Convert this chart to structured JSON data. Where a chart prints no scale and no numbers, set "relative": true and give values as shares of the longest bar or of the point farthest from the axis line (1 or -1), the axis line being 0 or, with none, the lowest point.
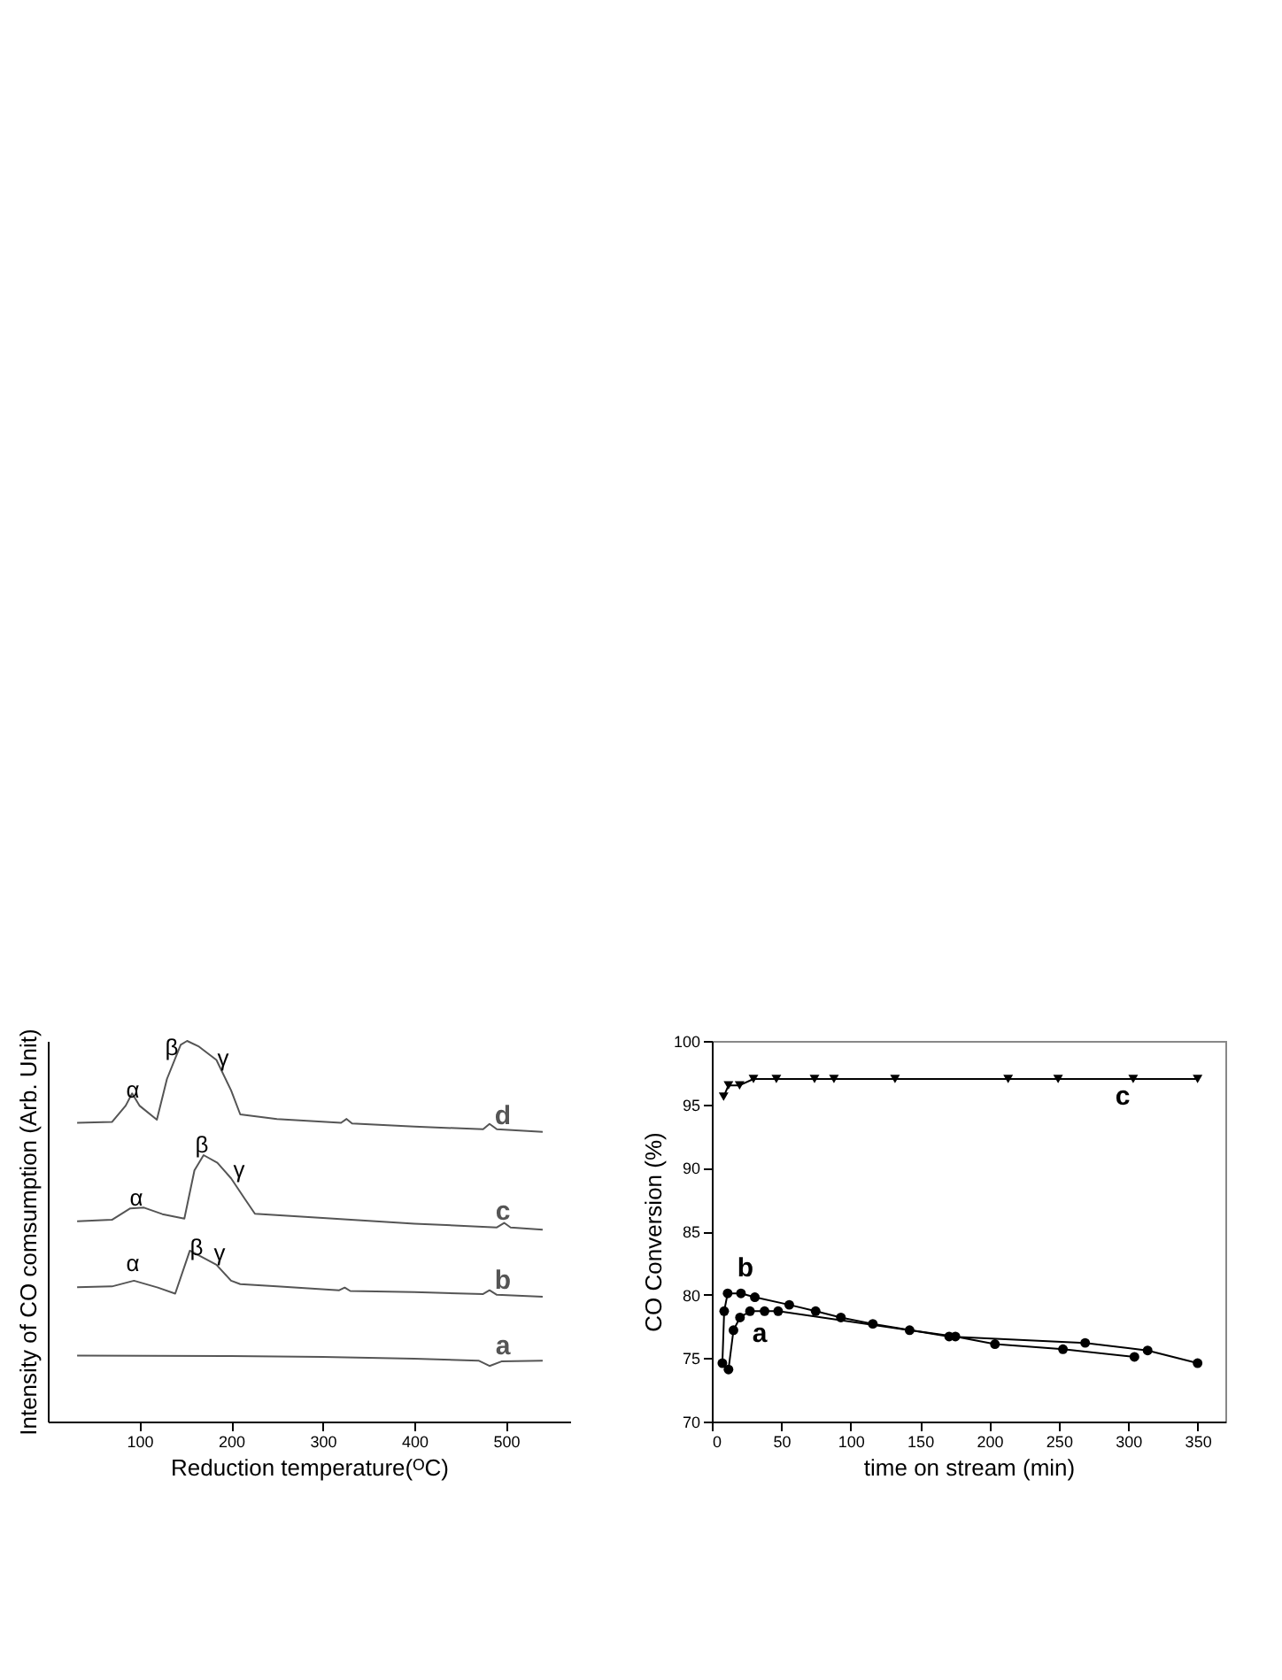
{
  "chart_data": [
    {
      "type": "line",
      "relative": true,
      "xlabel": "Reduction temperature(ᴼC)",
      "ylabel": "Intensity of CO comsumption (Arb. Unit)",
      "xlim": [
        0,
        570
      ],
      "xticks": [
        100,
        200,
        300,
        400,
        500
      ],
      "grid": false,
      "tick_labels": "x",
      "marker": "none",
      "line_style": "solid",
      "series": [
        {
          "name": "a",
          "color": "#555555",
          "x": [
            32,
            200,
            300,
            400,
            470,
            482,
            495,
            540
          ],
          "values": [
            0.173,
            0.172,
            0.17,
            0.165,
            0.16,
            0.146,
            0.158,
            0.16
          ]
        },
        {
          "name": "b",
          "color": "#555555",
          "x": [
            32,
            70,
            94,
            120,
            139,
            155,
            170,
            184,
            200,
            210,
            250,
            318,
            324,
            330,
            400,
            475,
            482,
            490,
            540
          ],
          "values": [
            0.353,
            0.355,
            0.37,
            0.352,
            0.336,
            0.449,
            0.43,
            0.412,
            0.37,
            0.361,
            0.355,
            0.345,
            0.352,
            0.343,
            0.34,
            0.335,
            0.345,
            0.333,
            0.328
          ]
        },
        {
          "name": "c",
          "color": "#555555",
          "x": [
            32,
            70,
            90,
            105,
            125,
            149,
            160,
            170,
            185,
            200,
            215,
            226,
            300,
            400,
            490,
            498,
            505,
            540
          ],
          "values": [
            0.526,
            0.53,
            0.56,
            0.562,
            0.545,
            0.533,
            0.66,
            0.7,
            0.68,
            0.639,
            0.585,
            0.546,
            0.535,
            0.52,
            0.51,
            0.522,
            0.51,
            0.504
          ]
        },
        {
          "name": "d",
          "color": "#555555",
          "x": [
            32,
            70,
            85,
            92,
            100,
            119,
            130,
            145,
            152,
            165,
            184,
            200,
            210,
            250,
            320,
            326,
            332,
            400,
            475,
            482,
            490,
            540
          ],
          "values": [
            0.785,
            0.787,
            0.83,
            0.862,
            0.83,
            0.793,
            0.9,
            0.99,
            1.0,
            0.985,
            0.95,
            0.87,
            0.807,
            0.795,
            0.785,
            0.795,
            0.783,
            0.775,
            0.768,
            0.782,
            0.768,
            0.761
          ]
        }
      ],
      "annotations": [
        "α",
        "β",
        "γ",
        "α",
        "β",
        "γ",
        "α",
        "β",
        "γ"
      ]
    },
    {
      "type": "line",
      "xlabel": "time on stream (min)",
      "ylabel": "CO Conversion (%)",
      "xlim": [
        0,
        370
      ],
      "xticks": [
        0,
        50,
        100,
        150,
        200,
        250,
        300,
        350
      ],
      "ylim": [
        70,
        100
      ],
      "yticks": [
        70,
        75,
        80,
        85,
        90,
        95,
        100
      ],
      "grid": false,
      "line_style": "solid",
      "series": [
        {
          "name": "a",
          "color": "#000000",
          "marker": "circle",
          "x": [
            12,
            15.6,
            20.3,
            27.5,
            38,
            47.8,
            142.5,
            175.5,
            204,
            253,
            304.5
          ],
          "values": [
            74.1,
            77.2,
            78.2,
            78.7,
            78.7,
            78.7,
            77.2,
            76.7,
            76.1,
            75.7,
            75.1
          ]
        },
        {
          "name": "b",
          "color": "#000000",
          "marker": "circle",
          "x": [
            7.6,
            8.9,
            11.4,
            21,
            31,
            55.8,
            74.8,
            93,
            116,
            171,
            269,
            314,
            350
          ],
          "values": [
            74.6,
            78.7,
            80.1,
            80.1,
            79.8,
            79.2,
            78.7,
            78.2,
            77.7,
            76.7,
            76.2,
            75.6,
            74.6
          ]
        },
        {
          "name": "c",
          "color": "#000000",
          "marker": "triangle",
          "x": [
            8.5,
            12,
            20,
            30,
            46.5,
            74,
            88,
            132,
            213.5,
            249.5,
            303.6,
            350
          ],
          "values": [
            95.6,
            96.5,
            96.5,
            97,
            97,
            97,
            97,
            97,
            97,
            97,
            97,
            97
          ]
        }
      ]
    }
  ]
}
